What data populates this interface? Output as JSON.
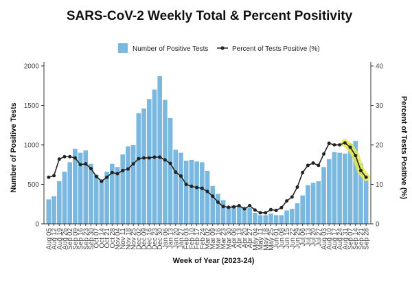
{
  "chart_data": {
    "type": "bar",
    "title": "SARS-CoV-2 Weekly Total & Percent Positivity",
    "xlabel": "Week of Year (2023-24)",
    "ylabel": "Number of Positive Tests",
    "y2label": "Percent of Tests Positive (%)",
    "ylim": [
      0,
      2000
    ],
    "y2lim": [
      0,
      40
    ],
    "yticks": [
      "0",
      "500",
      "1000",
      "1500",
      "2000"
    ],
    "y2ticks": [
      "0",
      "10",
      "20",
      "30",
      "40"
    ],
    "grid": false,
    "legend_position": "top",
    "categories": [
      "Aug 05",
      "Aug 12",
      "Aug 19",
      "Aug 26",
      "Sep 02",
      "Sep 09",
      "Sep 16",
      "Sep 23",
      "Sep 30",
      "Oct 07",
      "Oct 14",
      "Oct 21",
      "Oct 28",
      "Nov 04",
      "Nov 11",
      "Nov 18",
      "Nov 25",
      "Dec 02",
      "Dec 09",
      "Dec 16",
      "Dec 23",
      "Dec 30",
      "Jan 06",
      "Jan 13",
      "Jan 20",
      "Jan 27",
      "Feb 03",
      "Feb 10",
      "Feb 17",
      "Feb 24",
      "Mar 02",
      "Mar 09",
      "Mar 16",
      "Mar 23",
      "Mar 30",
      "Apr 06",
      "Apr 13",
      "Apr 20",
      "Apr 27",
      "May 04",
      "May 11",
      "May 18",
      "May 25",
      "Jun 01",
      "Jun 08",
      "Jun 15",
      "Jun 22",
      "Jun 29",
      "Jul 06",
      "Jul 13",
      "Jul 20",
      "Jul 27",
      "Aug 03",
      "Aug 10",
      "Aug 17",
      "Aug 24",
      "Aug 31",
      "Sep 07",
      "Sep 14",
      "Sep 21",
      "Sep 28"
    ],
    "series": [
      {
        "name": "Number of Positive Tests",
        "type": "bar",
        "color": "#7ab8df",
        "values": [
          310,
          350,
          540,
          660,
          780,
          950,
          900,
          930,
          760,
          620,
          560,
          660,
          760,
          720,
          880,
          980,
          1000,
          1400,
          1460,
          1580,
          1700,
          1870,
          1570,
          1340,
          940,
          900,
          800,
          810,
          790,
          780,
          670,
          480,
          380,
          300,
          220,
          230,
          220,
          210,
          200,
          140,
          110,
          110,
          130,
          110,
          110,
          170,
          190,
          260,
          360,
          490,
          520,
          540,
          720,
          820,
          910,
          900,
          890,
          1020,
          1050,
          770,
          550
        ]
      },
      {
        "name": "Percent of Tests Positive (%)",
        "type": "line",
        "color": "#222222",
        "values": [
          11.8,
          12.2,
          16.4,
          17.0,
          17.0,
          16.7,
          15.0,
          15.2,
          14.0,
          12.0,
          10.8,
          11.8,
          13.0,
          12.7,
          13.5,
          13.9,
          15.2,
          16.5,
          16.7,
          16.7,
          16.9,
          16.9,
          16.2,
          15.3,
          13.1,
          12.1,
          10.0,
          9.5,
          9.2,
          9.0,
          8.2,
          7.0,
          5.5,
          4.4,
          4.2,
          4.3,
          4.6,
          3.8,
          4.6,
          3.5,
          2.8,
          2.8,
          3.6,
          3.4,
          4.1,
          5.8,
          6.8,
          9.3,
          13.0,
          14.8,
          15.4,
          14.8,
          17.7,
          20.4,
          20.0,
          20.0,
          20.5,
          19.4,
          17.3,
          13.5,
          11.8
        ]
      }
    ],
    "highlight": {
      "color": "#e4ea50",
      "from_index": 56,
      "to_index": 60
    }
  }
}
